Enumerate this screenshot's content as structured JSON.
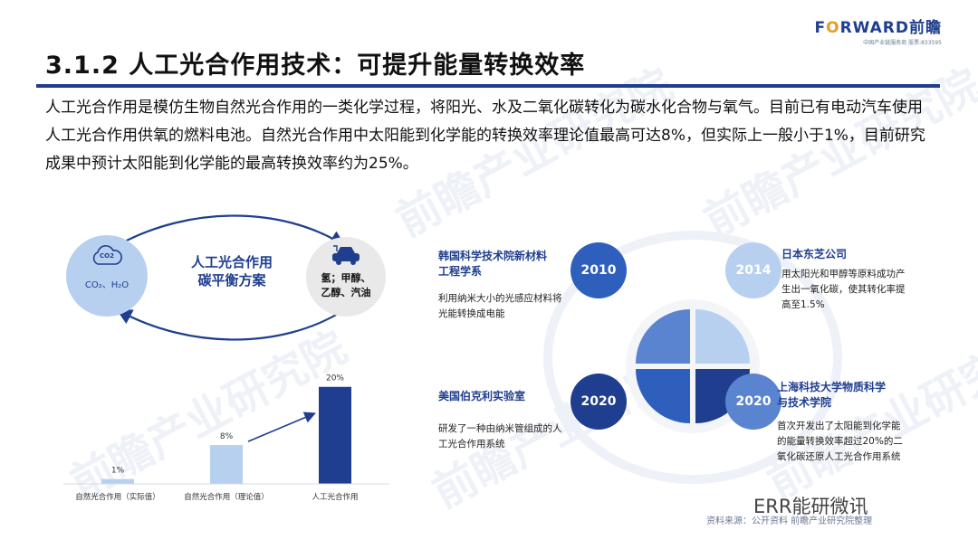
{
  "logo": {
    "brand_prefix": "F",
    "brand_o": "O",
    "brand_rest": "RWARD前瞻",
    "subtitle": "中国产业链服务商 股票:833595"
  },
  "title": "3.1.2 人工光合作用技术：可提升能量转换效率",
  "intro": "人工光合作用是模仿生物自然光合作用的一类化学过程，将阳光、水及二氧化碳转化为碳水化合物与氧气。目前已有电动汽车使用人工光合作用供氧的燃料电池。自然光合作用中太阳能到化学能的转换效率理论值最高可达8%，但实际上一般小于1%，目前研究成果中预计太阳能到化学能的最高转换效率约为25%。",
  "cycle": {
    "cloud_label": "CO2",
    "left_label": "CO₂、H₂O",
    "center_line1": "人工光合作用",
    "center_line2": "碳平衡方案",
    "right_line1": "氢；甲醇、",
    "right_line2": "乙醇、汽油",
    "icon_left": "cloud-icon",
    "icon_right": "ev-car-icon"
  },
  "chart_data": {
    "type": "bar",
    "categories": [
      "自然光合作用（实际值）",
      "自然光合作用（理论值）",
      "人工光合作用"
    ],
    "values": [
      1,
      8,
      20
    ],
    "data_labels": [
      "1%",
      "8%",
      "20%"
    ],
    "colors": [
      "#b8d0ef",
      "#b8d0ef",
      "#1f3e8f"
    ],
    "ylim": [
      0,
      22
    ]
  },
  "research": [
    {
      "year": "2010",
      "org_line1": "韩国科学技术院新材料",
      "org_line2": "工程学系",
      "desc_line1": "利用纳米大小的光感应材料将",
      "desc_line2": "光能转换成电能",
      "desc_line3": ""
    },
    {
      "year": "2014",
      "org_line1": "日本东芝公司",
      "org_line2": "",
      "desc_line1": "用太阳光和甲醇等原料成功产",
      "desc_line2": "生出一氧化碳，使其转化率提",
      "desc_line3": "高至1.5%"
    },
    {
      "year": "2020",
      "org_line1": "美国伯克利实验室",
      "org_line2": "",
      "desc_line1": "研发了一种由纳米管组成的人",
      "desc_line2": "工光合作用系统",
      "desc_line3": ""
    },
    {
      "year": "2020",
      "org_line1": "上海科技大学物质科学",
      "org_line2": "与技术学院",
      "desc_line1": "首次开发出了太阳能到化学能",
      "desc_line2": "的能量转换效率超过20%的二",
      "desc_line3": "氧化碳还原人工光合作用系统"
    }
  ],
  "colors": {
    "navy": "#1f3e8f",
    "blue": "#2f5fbd",
    "light_blue": "#b8d0ef",
    "accent_orange": "#e59b2b"
  },
  "source": "资料来源：公开资料 前瞻产业研究院整理",
  "wechat_name": "ERR能研微讯",
  "watermark": "前瞻产业研究院"
}
